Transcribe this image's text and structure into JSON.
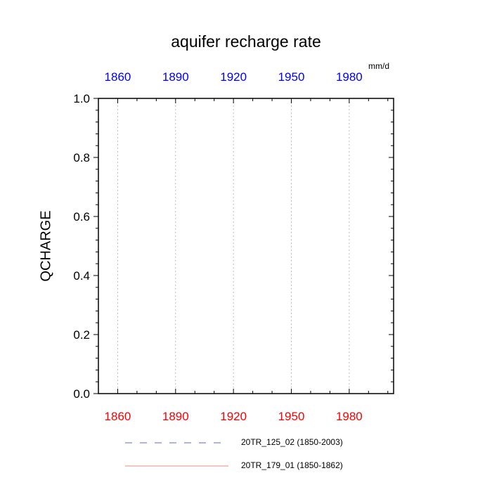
{
  "chart_data": {
    "type": "line",
    "title": "aquifer recharge rate",
    "units": "mm/d",
    "ylabel": "QCHARGE",
    "xlabel": "",
    "xlim": [
      1850,
      2003
    ],
    "ylim": [
      0.0,
      1.0
    ],
    "x_ticks": [
      1860,
      1890,
      1920,
      1950,
      1980
    ],
    "x_tick_labels": [
      "1860",
      "1890",
      "1920",
      "1950",
      "1980"
    ],
    "y_ticks": [
      0.0,
      0.2,
      0.4,
      0.6,
      0.8,
      1.0
    ],
    "y_tick_labels": [
      "0.0",
      "0.2",
      "0.4",
      "0.6",
      "0.8",
      "1.0"
    ],
    "top_axis_color": "#0000ff",
    "bottom_axis_color": "#ff0000",
    "grid": "vertical dotted",
    "legend_position": "bottom",
    "series": [
      {
        "name": "20TR_125_02 (1850-2003)",
        "color": "#6666cc",
        "dash": "dashed",
        "x": [
          1850,
          2003
        ],
        "y": [
          0.0,
          0.0
        ]
      },
      {
        "name": "20TR_179_01 (1850-1862)",
        "color": "#ff8080",
        "dash": "solid",
        "x": [
          1850,
          1862
        ],
        "y": [
          0.0,
          0.0
        ]
      }
    ]
  }
}
